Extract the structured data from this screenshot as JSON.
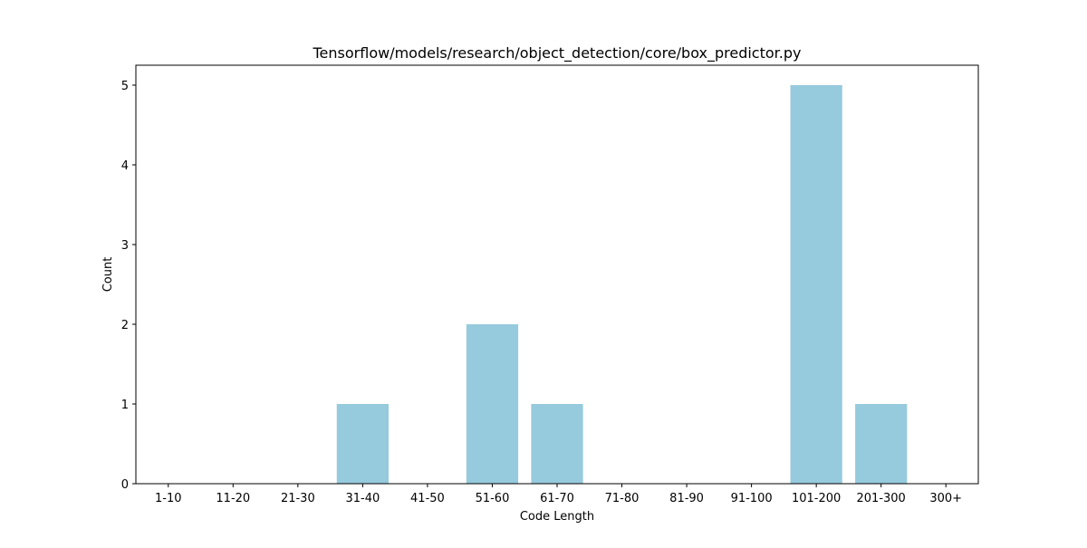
{
  "chart_data": {
    "type": "bar",
    "title": "Tensorflow/models/research/object_detection/core/box_predictor.py",
    "xlabel": "Code Length",
    "ylabel": "Count",
    "categories": [
      "1-10",
      "11-20",
      "21-30",
      "31-40",
      "41-50",
      "51-60",
      "61-70",
      "71-80",
      "81-90",
      "91-100",
      "101-200",
      "201-300",
      "300+"
    ],
    "values": [
      0,
      0,
      0,
      1,
      0,
      2,
      1,
      0,
      0,
      0,
      5,
      1,
      0
    ],
    "ylim": [
      0,
      5.25
    ],
    "yticks": [
      0,
      1,
      2,
      3,
      4,
      5
    ],
    "bar_color": "#96cadd",
    "grid": false,
    "legend": "none"
  }
}
